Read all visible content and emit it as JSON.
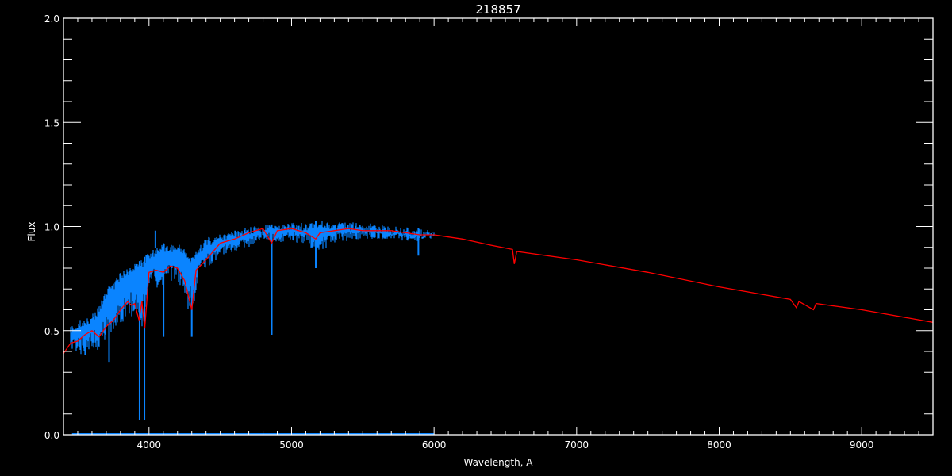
{
  "chart_data": {
    "type": "line",
    "title": "218857",
    "xlabel": "Wavelength, A",
    "ylabel": "Flux",
    "xlim": [
      3400,
      9500
    ],
    "ylim": [
      0.0,
      2.0
    ],
    "xticks": [
      "4000",
      "5000",
      "6000",
      "7000",
      "8000",
      "9000"
    ],
    "yticks": [
      "0.0",
      "0.5",
      "1.0",
      "1.5",
      "2.0"
    ],
    "grid": false,
    "colors": {
      "background": "#000000",
      "axes": "#ffffff",
      "observed": "#0a84ff",
      "model": "#ff0000"
    },
    "series": [
      {
        "role": "observed",
        "color": "#0a84ff",
        "band": {
          "x": [
            3450,
            3500,
            3550,
            3600,
            3650,
            3700,
            3750,
            3800,
            3850,
            3900,
            3950,
            4000,
            4050,
            4100,
            4150,
            4200,
            4250,
            4300,
            4350,
            4400,
            4450,
            4500,
            4600,
            4700,
            4800,
            4900,
            5000,
            5100,
            5200,
            5300,
            5400,
            5500,
            5600,
            5700,
            5800,
            5900,
            6000
          ],
          "low": [
            0.4,
            0.4,
            0.37,
            0.42,
            0.4,
            0.45,
            0.46,
            0.5,
            0.55,
            0.58,
            0.5,
            0.7,
            0.7,
            0.72,
            0.72,
            0.7,
            0.65,
            0.55,
            0.75,
            0.8,
            0.82,
            0.86,
            0.88,
            0.9,
            0.94,
            0.92,
            0.93,
            0.91,
            0.88,
            0.92,
            0.93,
            0.94,
            0.94,
            0.94,
            0.93,
            0.93,
            0.96
          ],
          "high": [
            0.52,
            0.55,
            0.56,
            0.58,
            0.62,
            0.7,
            0.73,
            0.78,
            0.8,
            0.82,
            0.84,
            0.88,
            0.9,
            0.92,
            0.91,
            0.92,
            0.9,
            0.85,
            0.9,
            0.95,
            0.95,
            0.97,
            0.98,
            1.0,
            1.01,
            1.01,
            1.02,
            1.02,
            1.03,
            1.02,
            1.02,
            1.02,
            1.01,
            1.0,
            1.0,
            0.99,
            0.98
          ]
        },
        "lines": [
          {
            "x": 3934,
            "y": 0.07
          },
          {
            "x": 3968,
            "y": 0.07
          },
          {
            "x": 4102,
            "y": 0.47
          },
          {
            "x": 4300,
            "y": 0.47
          },
          {
            "x": 4861,
            "y": 0.48
          },
          {
            "x": 5170,
            "y": 0.8
          },
          {
            "x": 5890,
            "y": 0.86
          },
          {
            "x": 3720,
            "y": 0.35
          },
          {
            "x": 4045,
            "y": 0.98
          }
        ],
        "error": {
          "x": [
            3460,
            6000
          ],
          "y": [
            0.005,
            0.005
          ]
        }
      },
      {
        "role": "model",
        "color": "#ff0000",
        "x": [
          3400,
          3450,
          3500,
          3550,
          3600,
          3650,
          3700,
          3750,
          3800,
          3850,
          3880,
          3900,
          3930,
          3950,
          3970,
          4000,
          4050,
          4100,
          4150,
          4200,
          4250,
          4300,
          4330,
          4400,
          4500,
          4600,
          4700,
          4800,
          4860,
          4900,
          5000,
          5100,
          5170,
          5200,
          5300,
          5400,
          5500,
          5600,
          5700,
          5800,
          5900,
          6000,
          6200,
          6400,
          6550,
          6563,
          6580,
          7000,
          7500,
          8000,
          8500,
          8542,
          8560,
          8662,
          8680,
          9000,
          9500
        ],
        "y": [
          0.39,
          0.44,
          0.45,
          0.48,
          0.5,
          0.47,
          0.52,
          0.55,
          0.6,
          0.64,
          0.62,
          0.63,
          0.55,
          0.64,
          0.51,
          0.78,
          0.79,
          0.78,
          0.81,
          0.8,
          0.74,
          0.6,
          0.79,
          0.84,
          0.92,
          0.94,
          0.97,
          0.99,
          0.92,
          0.98,
          0.99,
          0.97,
          0.94,
          0.97,
          0.98,
          0.99,
          0.98,
          0.98,
          0.98,
          0.97,
          0.96,
          0.96,
          0.94,
          0.91,
          0.89,
          0.82,
          0.88,
          0.84,
          0.78,
          0.71,
          0.65,
          0.61,
          0.64,
          0.6,
          0.63,
          0.6,
          0.54
        ]
      }
    ]
  }
}
